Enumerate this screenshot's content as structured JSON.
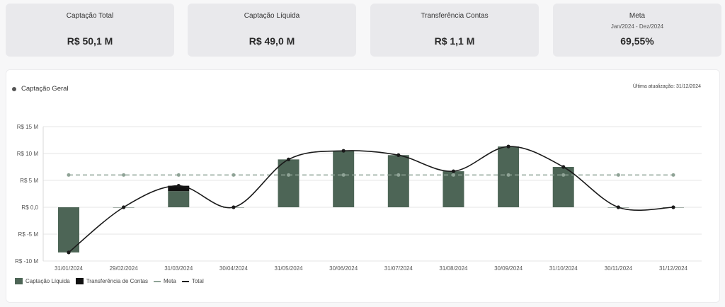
{
  "kpis": [
    {
      "title": "Captação Total",
      "subtitle": "",
      "value": "R$ 50,1 M"
    },
    {
      "title": "Captação Líquida",
      "subtitle": "",
      "value": "R$ 49,0 M"
    },
    {
      "title": "Transferência Contas",
      "subtitle": "",
      "value": "R$ 1,1 M"
    },
    {
      "title": "Meta",
      "subtitle": "Jan/2024 - Dez/2024",
      "value": "69,55%"
    }
  ],
  "chart": {
    "title": "Captação Geral",
    "updated": "Última atualização: 31/12/2024"
  },
  "colors": {
    "liquida": "#4d6556",
    "transferencia": "#111111",
    "meta": "#8fa396",
    "total": "#1a1a1a"
  },
  "chart_data": {
    "type": "bar",
    "categories": [
      "31/01/2024",
      "29/02/2024",
      "31/03/2024",
      "30/04/2024",
      "31/05/2024",
      "30/06/2024",
      "31/07/2024",
      "31/08/2024",
      "30/09/2024",
      "31/10/2024",
      "30/11/2024",
      "31/12/2024"
    ],
    "y_ticks": [
      "R$ 15 M",
      "R$ 10 M",
      "R$ 5 M",
      "R$ 0,0",
      "R$ -5 M",
      "R$ -10 M"
    ],
    "y_tick_values": [
      15,
      10,
      5,
      0,
      -5,
      -10
    ],
    "ylim": [
      -10,
      15
    ],
    "series": [
      {
        "name": "Captação Líquida",
        "type": "bar",
        "values": [
          -8.4,
          0,
          3.0,
          0,
          8.9,
          10.5,
          9.7,
          6.7,
          11.3,
          7.5,
          0,
          0
        ]
      },
      {
        "name": "Transferência de Contas",
        "type": "bar",
        "values": [
          0,
          0,
          1.0,
          0,
          0,
          0,
          0,
          0,
          0,
          0,
          0,
          0
        ]
      },
      {
        "name": "Meta",
        "type": "line",
        "values": [
          6,
          6,
          6,
          6,
          6,
          6,
          6,
          6,
          6,
          6,
          6,
          6
        ]
      },
      {
        "name": "Total",
        "type": "line",
        "values": [
          -8.4,
          0,
          4.0,
          0,
          8.9,
          10.5,
          9.7,
          6.7,
          11.3,
          7.5,
          0,
          0
        ]
      }
    ],
    "legend": "bottom-left",
    "grid": true
  }
}
